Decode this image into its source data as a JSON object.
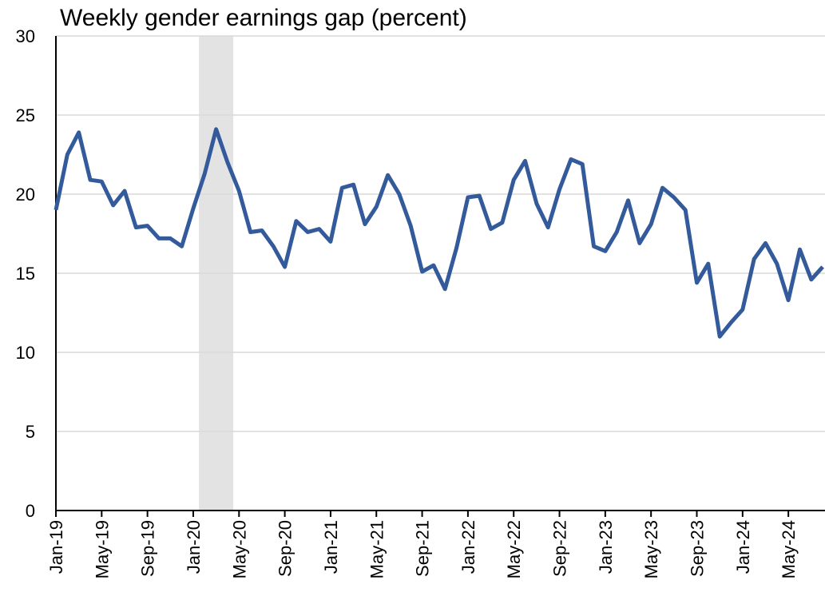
{
  "chart_data": {
    "type": "line",
    "title": "Weekly gender earnings gap (percent)",
    "categories": [
      "Jan-19",
      null,
      null,
      null,
      "May-19",
      null,
      null,
      null,
      "Sep-19",
      null,
      null,
      null,
      "Jan-20",
      null,
      null,
      null,
      "May-20",
      null,
      null,
      null,
      "Sep-20",
      null,
      null,
      null,
      "Jan-21",
      null,
      null,
      null,
      "May-21",
      null,
      null,
      null,
      "Sep-21",
      null,
      null,
      null,
      "Jan-22",
      null,
      null,
      null,
      "May-22",
      null,
      null,
      null,
      "Sep-22",
      null,
      null,
      null,
      "Jan-23",
      null,
      null,
      null,
      "May-23",
      null,
      null,
      null,
      "Sep-23",
      null,
      null,
      null,
      "Jan-24",
      null,
      null,
      null,
      "May-24",
      null,
      null,
      null
    ],
    "series": [
      {
        "color": "#335a9b",
        "values": [
          19.0,
          22.5,
          23.9,
          20.9,
          20.8,
          19.3,
          20.2,
          17.9,
          18.0,
          17.2,
          17.2,
          16.7,
          19.1,
          21.3,
          24.1,
          22.0,
          20.2,
          17.6,
          17.7,
          16.7,
          15.4,
          18.3,
          17.6,
          17.8,
          17.0,
          20.4,
          20.6,
          18.1,
          19.2,
          21.2,
          20.0,
          18.0,
          15.1,
          15.5,
          14.0,
          16.6,
          19.8,
          19.9,
          17.8,
          18.2,
          20.9,
          22.1,
          19.4,
          17.9,
          20.3,
          22.2,
          21.9,
          16.7,
          16.4,
          17.6,
          19.6,
          16.9,
          18.1,
          20.4,
          19.8,
          19.0,
          14.4,
          15.6,
          11.0,
          11.9,
          12.7,
          15.9,
          16.9,
          15.6,
          13.3,
          16.5,
          14.6,
          15.4
        ]
      }
    ],
    "shaded": [
      {
        "start": 13,
        "end": 16,
        "color": "#e3e3e3"
      }
    ],
    "ylim": [
      0,
      30
    ],
    "yticks": [
      0,
      5,
      10,
      15,
      20,
      25,
      30
    ],
    "grid": true
  }
}
